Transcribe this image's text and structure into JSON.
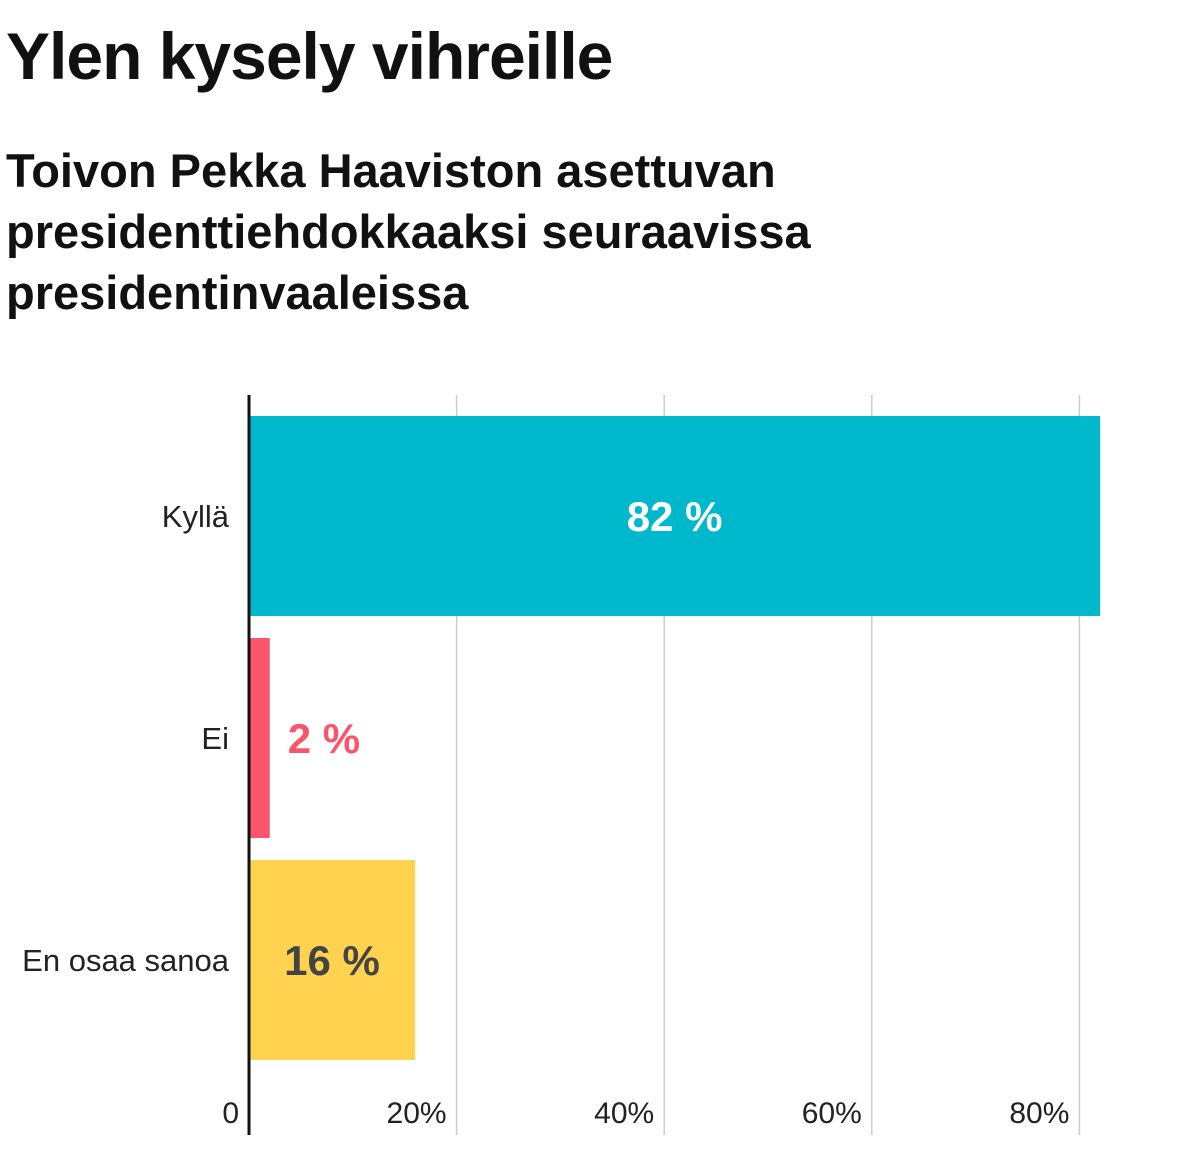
{
  "title": "Ylen kysely vihreille",
  "subtitle": "Toivon Pekka Haaviston asettuvan presidenttiehdokkaaksi seuraavissa presidentinvaaleissa",
  "chart_data": {
    "type": "bar",
    "orientation": "horizontal",
    "categories": [
      "Kyllä",
      "Ei",
      "En osaa sanoa"
    ],
    "values": [
      82,
      2,
      16
    ],
    "data_labels": [
      "82 %",
      "2 %",
      "16 %"
    ],
    "colors": [
      "#00b8cc",
      "#f9566b",
      "#ffd34f"
    ],
    "label_colors": [
      "#ffffff",
      "#f9566b",
      "#444444"
    ],
    "xlim": [
      0,
      80
    ],
    "ticks": [
      0,
      20,
      40,
      60,
      80
    ],
    "tick_labels": [
      "0",
      "20%",
      "40%",
      "60%",
      "80%"
    ],
    "grid": true,
    "legend": "none"
  }
}
